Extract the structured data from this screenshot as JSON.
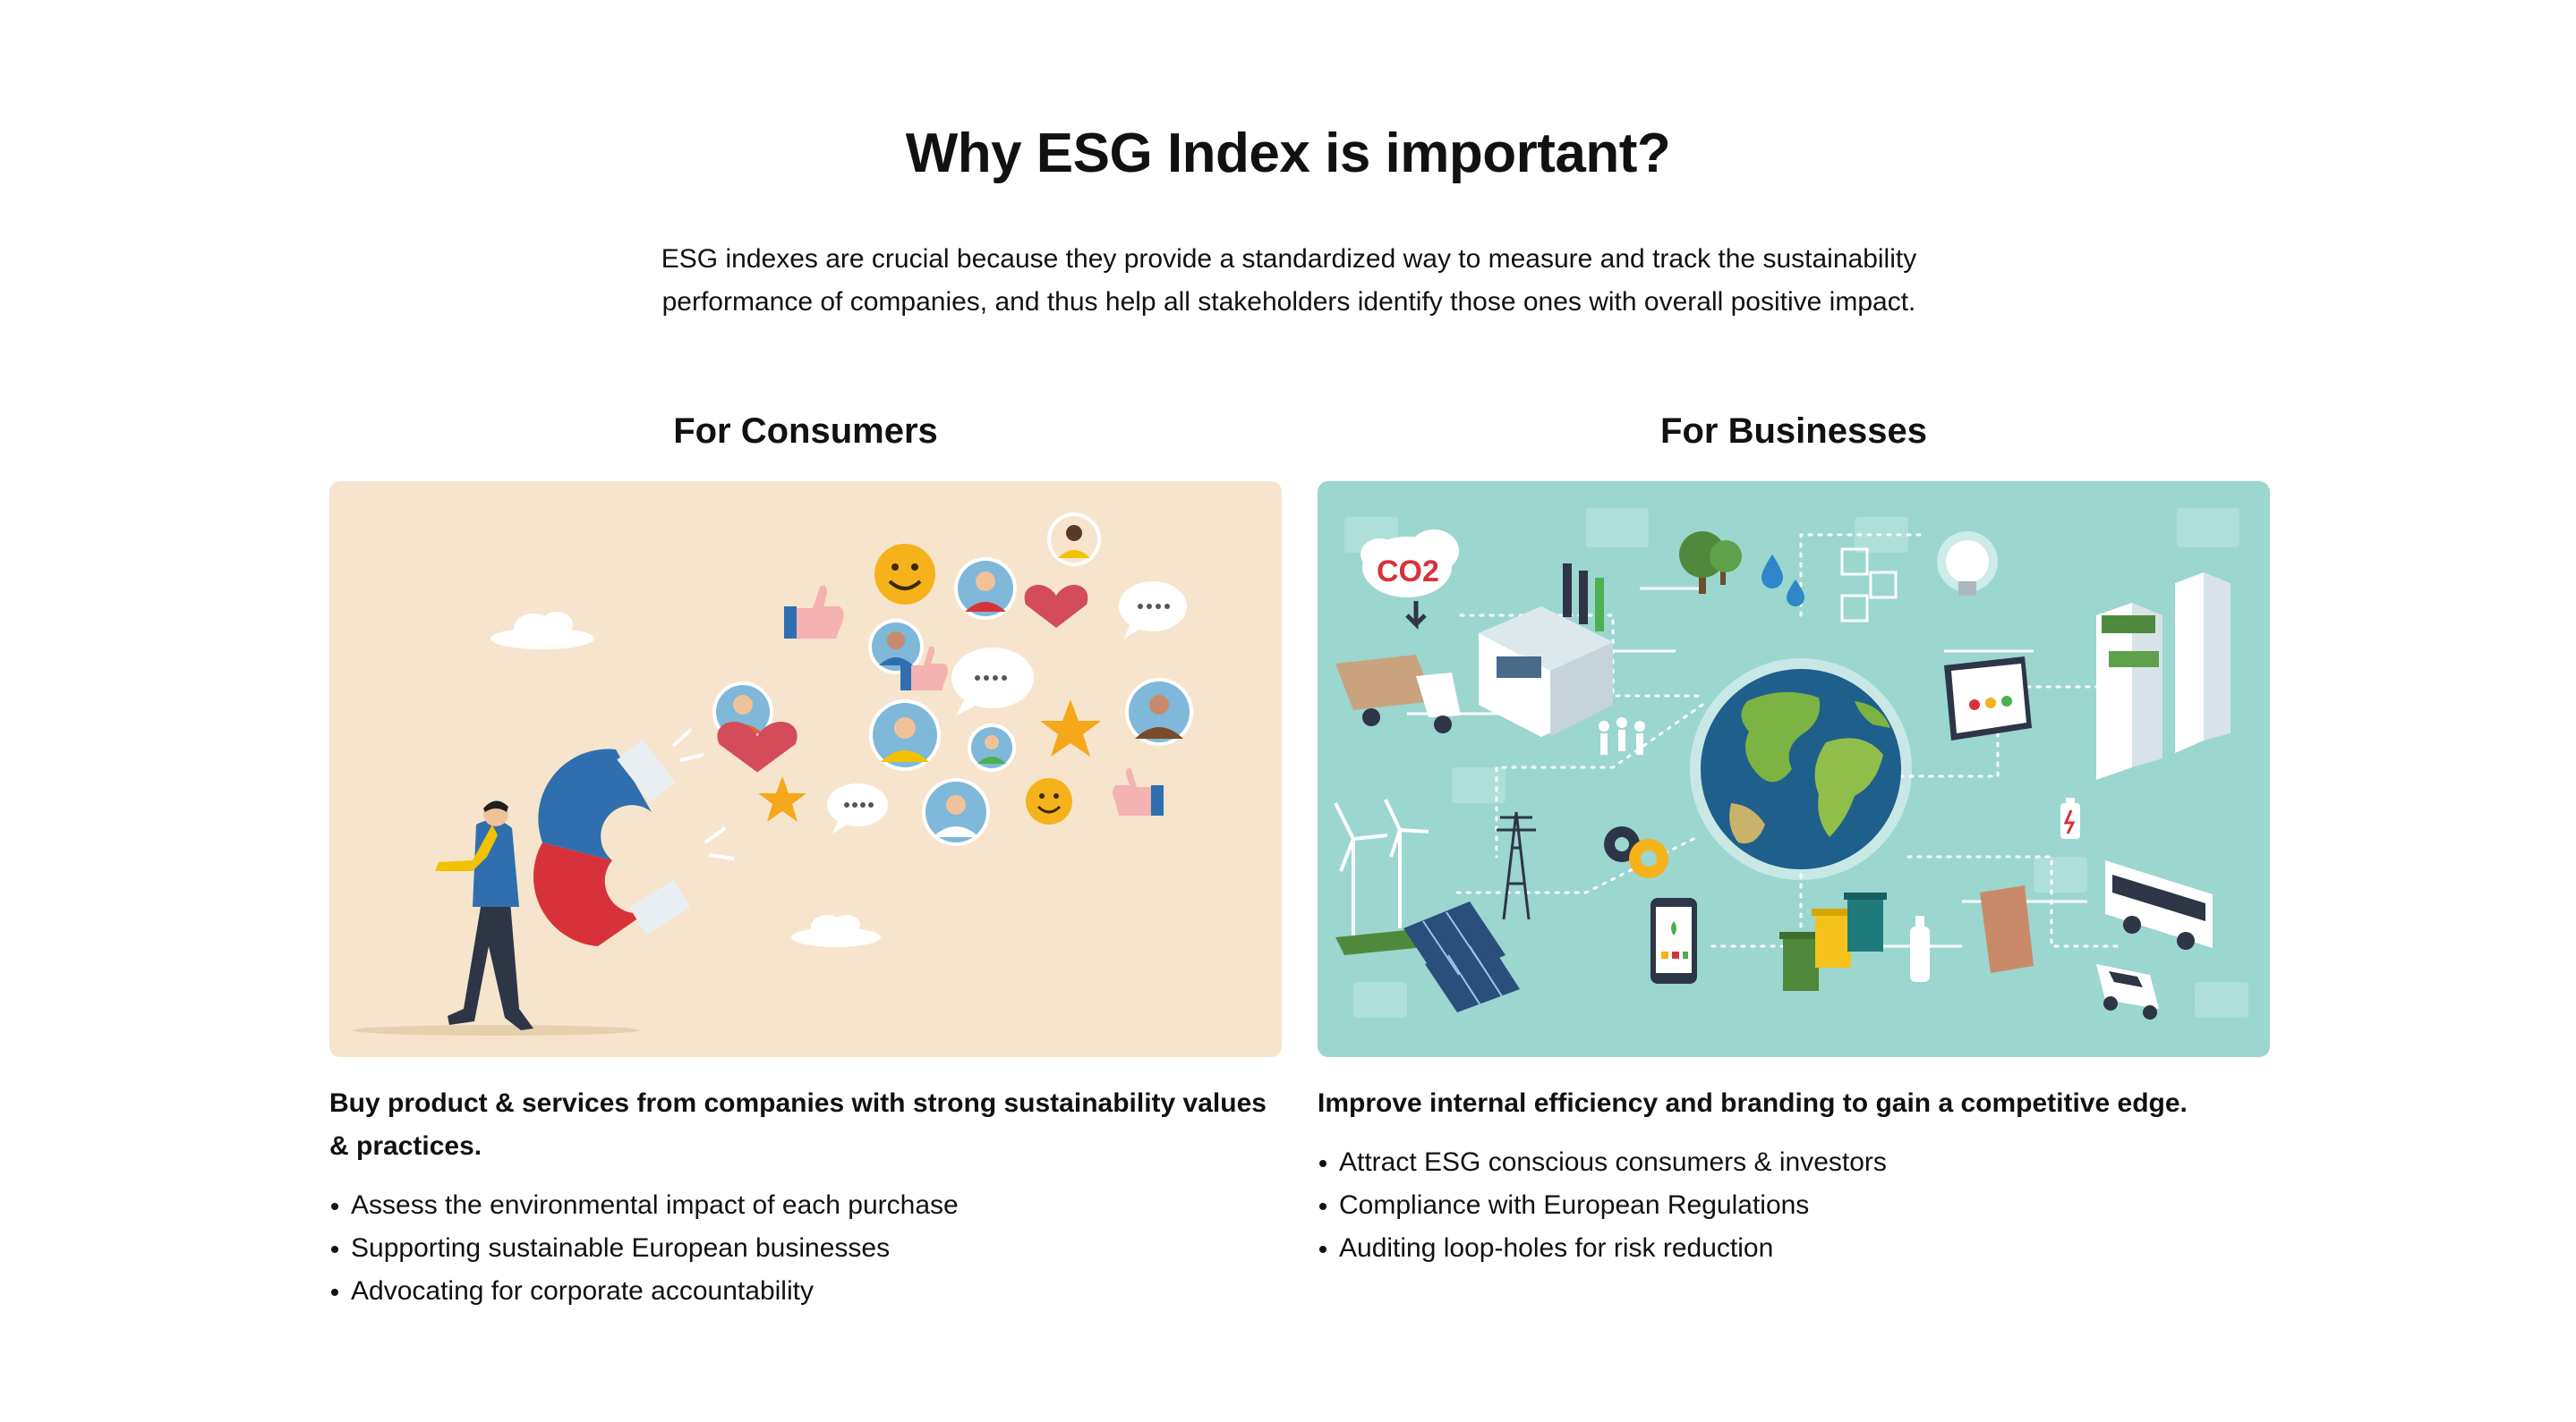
{
  "header": {
    "title": "Why ESG Index is important?",
    "intro": "ESG indexes are crucial because they provide a standardized way to measure and track the sustainability performance of companies, and thus help all stakeholders identify those ones with overall positive impact."
  },
  "consumers": {
    "title": "For Consumers",
    "lead": "Buy product & services from companies with strong sustainability values & practices.",
    "bullets": [
      "Assess the environmental impact of each purchase",
      "Supporting sustainable European businesses",
      "Advocating for corporate accountability"
    ],
    "illustration": {
      "background": "#f6e5cc",
      "icons": [
        "magnet-icon",
        "businessman-icon",
        "smiley-icon",
        "heart-icon",
        "star-icon",
        "thumbs-up-icon",
        "chat-bubble-icon",
        "avatar-icon",
        "cloud-icon"
      ]
    }
  },
  "businesses": {
    "title": "For Businesses",
    "lead": "Improve internal efficiency and branding to gain a competitive edge.",
    "bullets": [
      "Attract ESG conscious consumers & investors",
      "Compliance with European Regulations",
      "Auditing loop-holes for risk reduction"
    ],
    "illustration": {
      "background": "#9bd6cf",
      "co2_label": "CO2",
      "icons": [
        "globe-icon",
        "factory-icon",
        "co2-cloud-icon",
        "truck-icon",
        "wind-turbine-icon",
        "solar-panel-icon",
        "pylon-icon",
        "gear-icon",
        "smartphone-icon",
        "recycling-bin-icon",
        "bus-icon",
        "car-icon",
        "building-icon",
        "lightbulb-icon",
        "tree-icon",
        "water-drop-icon",
        "battery-icon",
        "tablet-icon"
      ]
    }
  },
  "colors": {
    "text": "#111111",
    "consumer_bg": "#f6e5cc",
    "business_bg": "#9bd6cf",
    "magnet_blue": "#2f6fb0",
    "magnet_red": "#d7323a",
    "globe_ocean": "#1f5f8b",
    "globe_land": "#7cb342"
  }
}
